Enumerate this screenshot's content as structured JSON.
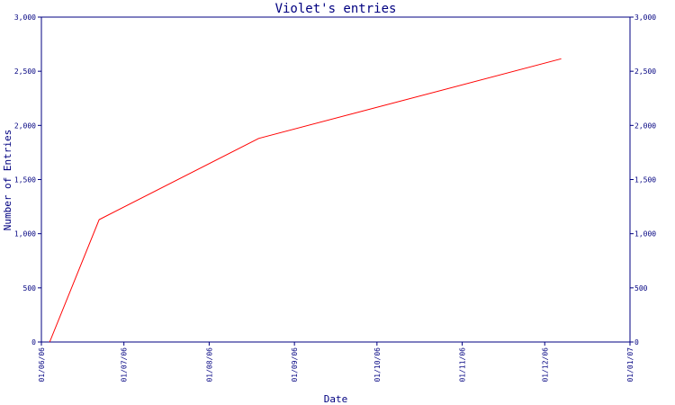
{
  "chart_data": {
    "type": "line",
    "title": "Violet's entries",
    "xlabel": "Date",
    "ylabel": "Number of Entries",
    "x_ticks": [
      "01/06/06",
      "01/07/06",
      "01/08/06",
      "01/09/06",
      "01/10/06",
      "01/11/06",
      "01/12/06",
      "01/01/07"
    ],
    "y_ticks": [
      "0",
      "500",
      "1,000",
      "1,500",
      "2,000",
      "2,500",
      "3,000"
    ],
    "ylim": [
      0,
      3000
    ],
    "xlim": [
      "2006-06-01",
      "2007-01-01"
    ],
    "series": [
      {
        "color": "#ff0000",
        "points": [
          {
            "x": "2006-06-04",
            "y": 0
          },
          {
            "x": "2006-06-22",
            "y": 1130
          },
          {
            "x": "2006-08-19",
            "y": 1880
          },
          {
            "x": "2006-12-07",
            "y": 2615
          }
        ]
      }
    ],
    "grid": false,
    "right_axis": true
  },
  "colors": {
    "axis": "#000080",
    "line": "#ff0000"
  }
}
